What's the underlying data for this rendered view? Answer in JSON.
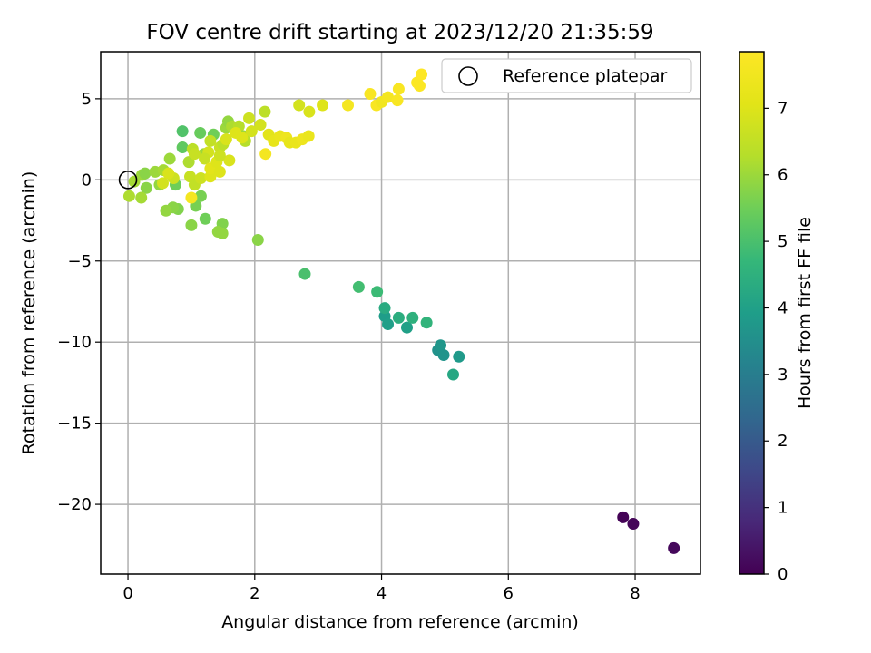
{
  "chart_data": {
    "type": "scatter",
    "title": "FOV centre drift starting at 2023/12/20 21:35:59",
    "xlabel": "Angular distance from reference (arcmin)",
    "ylabel": "Rotation from reference (arcmin)",
    "xlim": [
      -0.43,
      9.03
    ],
    "ylim": [
      -24.3,
      7.9
    ],
    "grid": true,
    "x_ticks": [
      0,
      2,
      4,
      6,
      8
    ],
    "x_tick_labels": [
      "0",
      "2",
      "4",
      "6",
      "8"
    ],
    "y_ticks": [
      5,
      0,
      -5,
      -10,
      -15,
      -20
    ],
    "y_tick_labels": [
      "5",
      "0",
      "−5",
      "−10",
      "−15",
      "−20"
    ],
    "colormap": "viridis",
    "colorbar": {
      "label": "Hours from first FF file",
      "range": [
        0,
        7.85
      ],
      "ticks": [
        0,
        1,
        2,
        3,
        4,
        5,
        6,
        7
      ],
      "tick_labels": [
        "0",
        "1",
        "2",
        "3",
        "4",
        "5",
        "6",
        "7"
      ]
    },
    "legend": {
      "placement": "upper right",
      "entries": [
        {
          "label": "Reference platepar",
          "marker": "open-circle",
          "x": 0,
          "y": 0
        }
      ]
    },
    "points": [
      {
        "x": 7.81,
        "y": -20.8,
        "c": 0.05
      },
      {
        "x": 7.97,
        "y": -21.2,
        "c": 0.1
      },
      {
        "x": 8.61,
        "y": -22.7,
        "c": 0.15
      },
      {
        "x": 4.89,
        "y": -10.5,
        "c": 3.6
      },
      {
        "x": 4.93,
        "y": -10.2,
        "c": 3.7
      },
      {
        "x": 4.98,
        "y": -10.8,
        "c": 3.65
      },
      {
        "x": 5.22,
        "y": -10.9,
        "c": 3.8
      },
      {
        "x": 4.05,
        "y": -8.4,
        "c": 3.9
      },
      {
        "x": 4.1,
        "y": -8.9,
        "c": 3.95
      },
      {
        "x": 4.4,
        "y": -9.1,
        "c": 4.0
      },
      {
        "x": 5.13,
        "y": -12.0,
        "c": 4.2
      },
      {
        "x": 4.05,
        "y": -7.9,
        "c": 4.3
      },
      {
        "x": 4.27,
        "y": -8.5,
        "c": 4.4
      },
      {
        "x": 4.49,
        "y": -8.5,
        "c": 4.5
      },
      {
        "x": 4.71,
        "y": -8.8,
        "c": 4.6
      },
      {
        "x": 3.93,
        "y": -6.9,
        "c": 4.8
      },
      {
        "x": 3.64,
        "y": -6.6,
        "c": 4.9
      },
      {
        "x": 2.79,
        "y": -5.8,
        "c": 5.0
      },
      {
        "x": 0.86,
        "y": 3.0,
        "c": 5.1
      },
      {
        "x": 1.14,
        "y": 2.9,
        "c": 5.4
      },
      {
        "x": 0.86,
        "y": 2.0,
        "c": 5.3
      },
      {
        "x": 1.35,
        "y": 2.8,
        "c": 5.5
      },
      {
        "x": 1.22,
        "y": -2.4,
        "c": 5.5
      },
      {
        "x": 1.07,
        "y": -1.6,
        "c": 5.6
      },
      {
        "x": 1.15,
        "y": -1.0,
        "c": 5.6
      },
      {
        "x": 0.79,
        "y": -1.8,
        "c": 5.7
      },
      {
        "x": 0.71,
        "y": -1.7,
        "c": 5.8
      },
      {
        "x": 0.6,
        "y": -1.9,
        "c": 5.9
      },
      {
        "x": 1.0,
        "y": -2.8,
        "c": 5.8
      },
      {
        "x": 1.49,
        "y": -2.7,
        "c": 5.7
      },
      {
        "x": 1.42,
        "y": -3.2,
        "c": 5.9
      },
      {
        "x": 1.49,
        "y": -3.3,
        "c": 5.9
      },
      {
        "x": 2.05,
        "y": -3.7,
        "c": 5.8
      },
      {
        "x": 0.29,
        "y": -0.5,
        "c": 5.8
      },
      {
        "x": 0.75,
        "y": -0.3,
        "c": 5.5
      },
      {
        "x": 0.5,
        "y": -0.3,
        "c": 5.9
      },
      {
        "x": 0.21,
        "y": -1.1,
        "c": 6.1
      },
      {
        "x": 0.02,
        "y": -1.0,
        "c": 6.2
      },
      {
        "x": 0.1,
        "y": -0.1,
        "c": 6.1
      },
      {
        "x": 0.22,
        "y": 0.3,
        "c": 6.0
      },
      {
        "x": 0.27,
        "y": 0.4,
        "c": 5.8
      },
      {
        "x": 0.43,
        "y": 0.5,
        "c": 6.0
      },
      {
        "x": 0.56,
        "y": 0.6,
        "c": 6.1
      },
      {
        "x": 0.66,
        "y": 1.3,
        "c": 6.0
      },
      {
        "x": 0.96,
        "y": 1.1,
        "c": 6.2
      },
      {
        "x": 1.02,
        "y": 1.9,
        "c": 6.4
      },
      {
        "x": 1.2,
        "y": 1.6,
        "c": 6.0
      },
      {
        "x": 1.3,
        "y": 2.4,
        "c": 6.5
      },
      {
        "x": 1.55,
        "y": 3.2,
        "c": 6.0
      },
      {
        "x": 1.58,
        "y": 3.6,
        "c": 5.9
      },
      {
        "x": 1.64,
        "y": 3.3,
        "c": 6.2
      },
      {
        "x": 1.75,
        "y": 3.3,
        "c": 6.3
      },
      {
        "x": 1.82,
        "y": 2.7,
        "c": 6.0
      },
      {
        "x": 1.85,
        "y": 2.4,
        "c": 6.3
      },
      {
        "x": 1.91,
        "y": 3.8,
        "c": 6.7
      },
      {
        "x": 2.09,
        "y": 3.4,
        "c": 6.8
      },
      {
        "x": 2.16,
        "y": 4.2,
        "c": 6.4
      },
      {
        "x": 1.45,
        "y": 2.0,
        "c": 6.6
      },
      {
        "x": 1.5,
        "y": 2.2,
        "c": 6.4
      },
      {
        "x": 1.27,
        "y": 1.7,
        "c": 6.8
      },
      {
        "x": 1.21,
        "y": 1.3,
        "c": 6.6
      },
      {
        "x": 1.05,
        "y": 1.6,
        "c": 6.6
      },
      {
        "x": 0.98,
        "y": 0.2,
        "c": 6.6
      },
      {
        "x": 0.72,
        "y": 0.1,
        "c": 6.7
      },
      {
        "x": 0.64,
        "y": 0.4,
        "c": 6.9
      },
      {
        "x": 0.55,
        "y": -0.2,
        "c": 6.8
      },
      {
        "x": 1.05,
        "y": -0.3,
        "c": 6.5
      },
      {
        "x": 1.15,
        "y": 0.1,
        "c": 6.7
      },
      {
        "x": 1.3,
        "y": 0.2,
        "c": 7.0
      },
      {
        "x": 1.3,
        "y": 0.7,
        "c": 7.1
      },
      {
        "x": 1.45,
        "y": 0.5,
        "c": 7.0
      },
      {
        "x": 1.4,
        "y": 1.1,
        "c": 7.0
      },
      {
        "x": 1.6,
        "y": 1.2,
        "c": 6.9
      },
      {
        "x": 1.45,
        "y": 1.5,
        "c": 6.7
      },
      {
        "x": 1.55,
        "y": 2.5,
        "c": 6.9
      },
      {
        "x": 1.7,
        "y": 2.9,
        "c": 7.0
      },
      {
        "x": 1.8,
        "y": 2.6,
        "c": 7.0
      },
      {
        "x": 1.95,
        "y": 3.0,
        "c": 6.8
      },
      {
        "x": 2.22,
        "y": 2.8,
        "c": 7.1
      },
      {
        "x": 2.3,
        "y": 2.4,
        "c": 7.2
      },
      {
        "x": 2.4,
        "y": 2.7,
        "c": 7.3
      },
      {
        "x": 2.5,
        "y": 2.6,
        "c": 7.4
      },
      {
        "x": 2.55,
        "y": 2.3,
        "c": 7.2
      },
      {
        "x": 2.65,
        "y": 2.3,
        "c": 7.3
      },
      {
        "x": 2.75,
        "y": 2.5,
        "c": 7.4
      },
      {
        "x": 2.85,
        "y": 2.7,
        "c": 7.3
      },
      {
        "x": 2.17,
        "y": 1.6,
        "c": 7.6
      },
      {
        "x": 1.0,
        "y": -1.1,
        "c": 7.6
      },
      {
        "x": 2.7,
        "y": 4.6,
        "c": 6.8
      },
      {
        "x": 2.86,
        "y": 4.2,
        "c": 6.9
      },
      {
        "x": 3.07,
        "y": 4.6,
        "c": 7.0
      },
      {
        "x": 3.47,
        "y": 4.6,
        "c": 7.6
      },
      {
        "x": 3.82,
        "y": 5.3,
        "c": 7.7
      },
      {
        "x": 3.92,
        "y": 4.6,
        "c": 7.7
      },
      {
        "x": 4.0,
        "y": 4.8,
        "c": 7.5
      },
      {
        "x": 4.1,
        "y": 5.1,
        "c": 7.6
      },
      {
        "x": 4.25,
        "y": 4.9,
        "c": 7.7
      },
      {
        "x": 4.27,
        "y": 5.6,
        "c": 7.7
      },
      {
        "x": 4.56,
        "y": 6.0,
        "c": 7.8
      },
      {
        "x": 4.6,
        "y": 5.8,
        "c": 7.8
      },
      {
        "x": 4.63,
        "y": 6.5,
        "c": 7.85
      }
    ]
  }
}
